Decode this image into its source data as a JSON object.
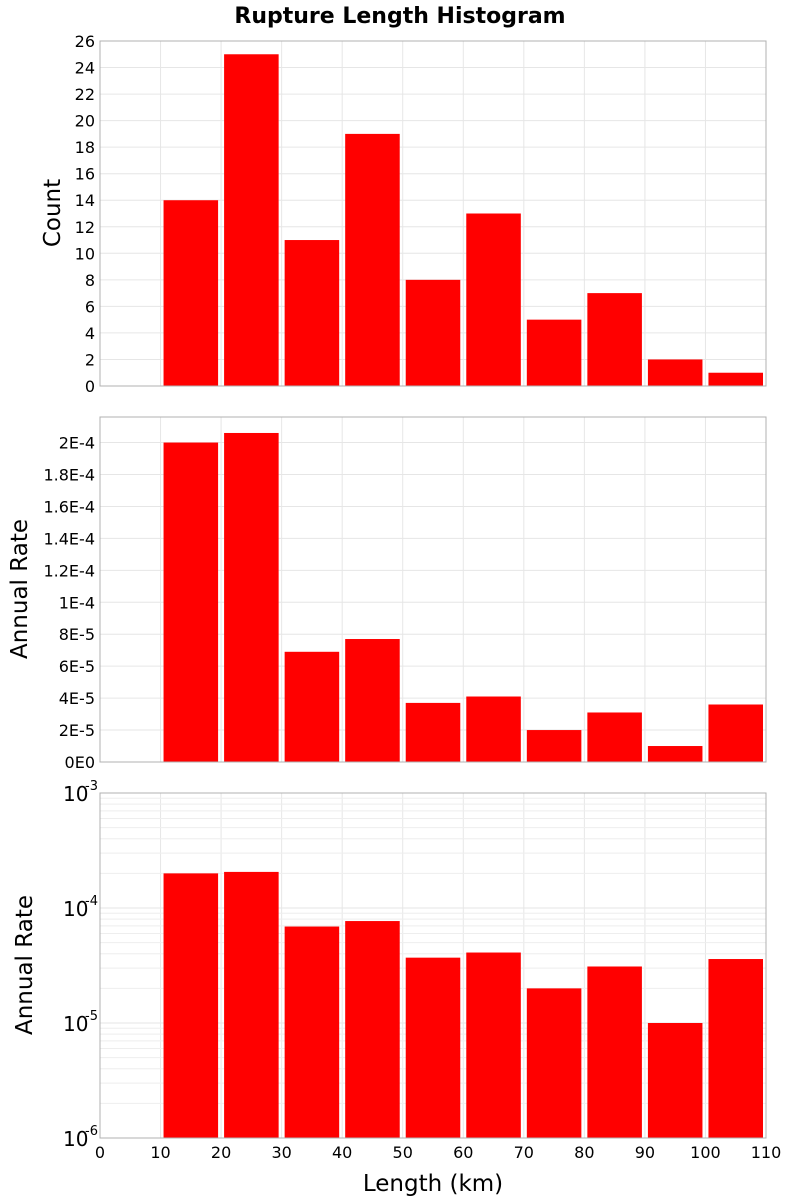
{
  "colors": {
    "bar": "#ff0000",
    "background": "#ffffff"
  },
  "chart_data": [
    {
      "type": "bar",
      "title": "Rupture Length Histogram",
      "ylabel": "Count",
      "xlim": [
        0,
        110
      ],
      "ylim": [
        0,
        26
      ],
      "yticks": [
        0,
        2,
        4,
        6,
        8,
        10,
        12,
        14,
        16,
        18,
        20,
        22,
        24,
        26
      ],
      "ytick_labels": [
        "0",
        "2",
        "4",
        "6",
        "8",
        "10",
        "12",
        "14",
        "16",
        "18",
        "20",
        "22",
        "24",
        "26"
      ],
      "bins": [
        [
          10,
          20
        ],
        [
          20,
          30
        ],
        [
          30,
          40
        ],
        [
          40,
          50
        ],
        [
          50,
          60
        ],
        [
          60,
          70
        ],
        [
          70,
          80
        ],
        [
          80,
          90
        ],
        [
          90,
          100
        ],
        [
          100,
          110
        ]
      ],
      "values": [
        14,
        25,
        11,
        19,
        8,
        13,
        5,
        7,
        2,
        1
      ],
      "grid": true
    },
    {
      "type": "bar",
      "ylabel": "Annual Rate",
      "xlim": [
        0,
        110
      ],
      "ylim": [
        0,
        0.000216
      ],
      "yticks": [
        0,
        2e-05,
        4e-05,
        6e-05,
        8e-05,
        0.0001,
        0.00012,
        0.00014,
        0.00016,
        0.00018,
        0.0002
      ],
      "ytick_labels": [
        "0E0",
        "2E-5",
        "4E-5",
        "6E-5",
        "8E-5",
        "1E-4",
        "1.2E-4",
        "1.4E-4",
        "1.6E-4",
        "1.8E-4",
        "2E-4"
      ],
      "bins": [
        [
          10,
          20
        ],
        [
          20,
          30
        ],
        [
          30,
          40
        ],
        [
          40,
          50
        ],
        [
          50,
          60
        ],
        [
          60,
          70
        ],
        [
          70,
          80
        ],
        [
          80,
          90
        ],
        [
          90,
          100
        ],
        [
          100,
          110
        ]
      ],
      "values": [
        0.0002,
        0.000206,
        6.9e-05,
        7.7e-05,
        3.7e-05,
        4.1e-05,
        2e-05,
        3.1e-05,
        1e-05,
        3.6e-05
      ],
      "grid": true
    },
    {
      "type": "bar",
      "ylabel": "Annual Rate",
      "xlabel": "Length (km)",
      "yscale": "log",
      "xlim": [
        0,
        110
      ],
      "ylim": [
        1e-06,
        0.001
      ],
      "ytick_exponents": [
        "-6",
        "-5",
        "-4",
        "-3"
      ],
      "ytick_base": "10",
      "xticks": [
        0,
        10,
        20,
        30,
        40,
        50,
        60,
        70,
        80,
        90,
        100,
        110
      ],
      "xtick_labels": [
        "0",
        "10",
        "20",
        "30",
        "40",
        "50",
        "60",
        "70",
        "80",
        "90",
        "100",
        "110"
      ],
      "bins": [
        [
          10,
          20
        ],
        [
          20,
          30
        ],
        [
          30,
          40
        ],
        [
          40,
          50
        ],
        [
          50,
          60
        ],
        [
          60,
          70
        ],
        [
          70,
          80
        ],
        [
          80,
          90
        ],
        [
          90,
          100
        ],
        [
          100,
          110
        ]
      ],
      "values": [
        0.0002,
        0.000206,
        6.9e-05,
        7.7e-05,
        3.7e-05,
        4.1e-05,
        2e-05,
        3.1e-05,
        1e-05,
        3.6e-05
      ],
      "grid": true
    }
  ]
}
